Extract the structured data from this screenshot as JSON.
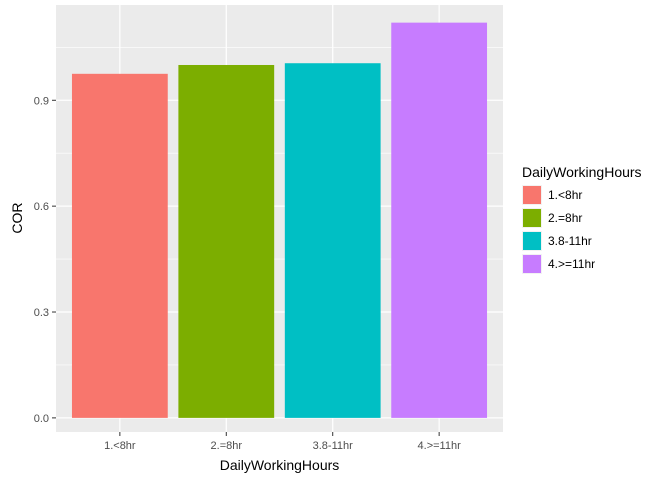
{
  "chart_data": {
    "type": "bar",
    "xlabel": "DailyWorkingHours",
    "ylabel": "COR",
    "categories": [
      "1.<8hr",
      "2.=8hr",
      "3.8-11hr",
      "4.>=11hr"
    ],
    "values": [
      0.975,
      1.0,
      1.005,
      1.12
    ],
    "colors": [
      "#F8766D",
      "#7CAE00",
      "#00BFC4",
      "#C77CFF"
    ],
    "ylim": [
      -0.04,
      1.17
    ],
    "yticks": [
      0.0,
      0.3,
      0.6,
      0.9
    ],
    "ytick_labels": [
      "0.0",
      "0.3",
      "0.6",
      "0.9"
    ],
    "grid": true,
    "panel_background": "#EBEBEB",
    "legend": {
      "title": "DailyWorkingHours",
      "placement": "right",
      "entries": [
        "1.<8hr",
        "2.=8hr",
        "3.8-11hr",
        "4.>=11hr"
      ]
    }
  }
}
